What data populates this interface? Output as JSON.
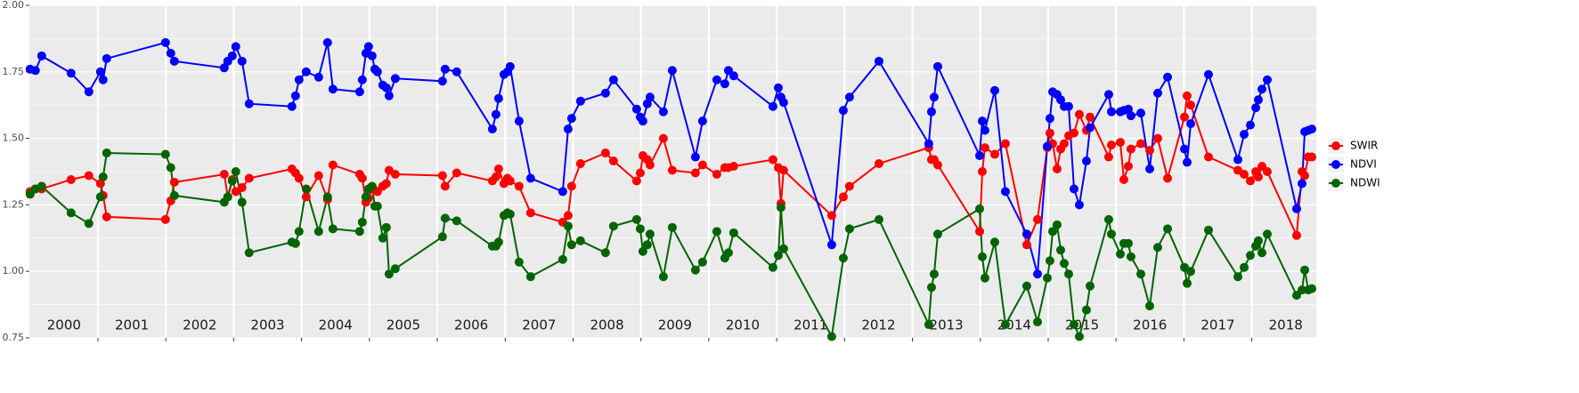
{
  "chart_data": {
    "type": "line",
    "x": [
      2000.0,
      2000.079,
      2000.171,
      2000.604,
      2000.866,
      2001.037,
      2001.076,
      2001.129,
      2001.995,
      2002.073,
      2002.126,
      2002.861,
      2002.913,
      2002.979,
      2003.031,
      2003.123,
      2003.228,
      2003.858,
      2003.911,
      2003.963,
      2004.068,
      2004.252,
      2004.383,
      2004.462,
      2004.856,
      2004.895,
      2004.948,
      2004.987,
      2005.039,
      2005.079,
      2005.118,
      2005.197,
      2005.249,
      2005.289,
      2005.381,
      2006.076,
      2006.115,
      2006.286,
      2006.811,
      2006.864,
      2006.903,
      2006.982,
      2007.034,
      2007.073,
      2007.205,
      2007.375,
      2007.848,
      2007.927,
      2007.979,
      2008.11,
      2008.478,
      2008.596,
      2008.937,
      2008.99,
      2009.029,
      2009.094,
      2009.134,
      2009.331,
      2009.462,
      2009.803,
      2009.908,
      2010.118,
      2010.236,
      2010.289,
      2010.367,
      2010.945,
      2011.024,
      2011.063,
      2011.102,
      2011.811,
      2011.982,
      2012.073,
      2012.507,
      2013.241,
      2013.281,
      2013.32,
      2013.373,
      2013.99,
      2014.029,
      2014.068,
      2014.213,
      2014.37,
      2014.685,
      2014.843,
      2014.987,
      2015.026,
      2015.066,
      2015.131,
      2015.184,
      2015.236,
      2015.302,
      2015.381,
      2015.459,
      2015.564,
      2015.617,
      2015.892,
      2015.932,
      2016.063,
      2016.115,
      2016.181,
      2016.22,
      2016.365,
      2016.496,
      2016.614,
      2016.759,
      2017.008,
      2017.047,
      2017.1,
      2017.362,
      2017.795,
      2017.887,
      2017.979,
      2018.058,
      2018.097,
      2018.15,
      2018.228,
      2018.661,
      2018.74,
      2018.78,
      2018.832,
      2018.885
    ],
    "series": [
      {
        "name": "SWIR",
        "color": "#ff0000",
        "values": [
          1.3,
          1.31,
          1.31,
          1.345,
          1.36,
          1.33,
          1.285,
          1.205,
          1.195,
          1.265,
          1.335,
          1.365,
          1.28,
          1.345,
          1.3,
          1.315,
          1.35,
          1.385,
          1.37,
          1.35,
          1.28,
          1.36,
          1.27,
          1.4,
          1.365,
          1.35,
          1.26,
          1.275,
          1.31,
          1.305,
          1.3,
          1.32,
          1.33,
          1.38,
          1.365,
          1.36,
          1.32,
          1.37,
          1.34,
          1.355,
          1.385,
          1.33,
          1.35,
          1.34,
          1.32,
          1.22,
          1.185,
          1.21,
          1.32,
          1.405,
          1.445,
          1.415,
          1.34,
          1.37,
          1.435,
          1.42,
          1.4,
          1.5,
          1.38,
          1.37,
          1.4,
          1.365,
          1.39,
          1.39,
          1.395,
          1.42,
          1.39,
          1.255,
          1.38,
          1.21,
          1.28,
          1.32,
          1.405,
          1.465,
          1.42,
          1.42,
          1.4,
          1.15,
          1.375,
          1.465,
          1.44,
          1.48,
          1.1,
          1.195,
          1.465,
          1.52,
          1.48,
          1.385,
          1.46,
          1.48,
          1.51,
          1.52,
          1.59,
          1.53,
          1.58,
          1.43,
          1.475,
          1.485,
          1.345,
          1.395,
          1.46,
          1.48,
          1.455,
          1.5,
          1.35,
          1.58,
          1.66,
          1.625,
          1.43,
          1.38,
          1.365,
          1.34,
          1.375,
          1.355,
          1.395,
          1.375,
          1.135,
          1.375,
          1.36,
          1.43,
          1.43
        ]
      },
      {
        "name": "NDVI",
        "color": "#0000ff",
        "values": [
          1.76,
          1.755,
          1.81,
          1.745,
          1.675,
          1.75,
          1.72,
          1.8,
          1.86,
          1.82,
          1.79,
          1.765,
          1.79,
          1.81,
          1.845,
          1.79,
          1.63,
          1.62,
          1.66,
          1.72,
          1.75,
          1.73,
          1.86,
          1.685,
          1.675,
          1.72,
          1.82,
          1.845,
          1.81,
          1.76,
          1.75,
          1.7,
          1.69,
          1.66,
          1.725,
          1.715,
          1.76,
          1.75,
          1.535,
          1.59,
          1.65,
          1.74,
          1.75,
          1.77,
          1.565,
          1.35,
          1.3,
          1.535,
          1.575,
          1.64,
          1.67,
          1.72,
          1.61,
          1.58,
          1.565,
          1.63,
          1.655,
          1.6,
          1.755,
          1.43,
          1.565,
          1.72,
          1.705,
          1.755,
          1.735,
          1.62,
          1.69,
          1.655,
          1.635,
          1.1,
          1.605,
          1.655,
          1.79,
          1.48,
          1.6,
          1.655,
          1.77,
          1.435,
          1.565,
          1.53,
          1.68,
          1.3,
          1.14,
          0.99,
          1.47,
          1.575,
          1.675,
          1.665,
          1.645,
          1.62,
          1.62,
          1.31,
          1.25,
          1.415,
          1.54,
          1.665,
          1.6,
          1.6,
          1.605,
          1.61,
          1.585,
          1.595,
          1.385,
          1.67,
          1.73,
          1.46,
          1.41,
          1.555,
          1.74,
          1.42,
          1.515,
          1.55,
          1.615,
          1.645,
          1.685,
          1.72,
          1.235,
          1.33,
          1.525,
          1.53,
          1.535
        ]
      },
      {
        "name": "NDWI",
        "color": "#006400",
        "values": [
          1.29,
          1.31,
          1.32,
          1.22,
          1.18,
          1.28,
          1.355,
          1.445,
          1.44,
          1.39,
          1.285,
          1.26,
          1.28,
          1.34,
          1.375,
          1.26,
          1.07,
          1.11,
          1.105,
          1.15,
          1.31,
          1.15,
          1.28,
          1.16,
          1.15,
          1.185,
          1.28,
          1.31,
          1.32,
          1.245,
          1.245,
          1.125,
          1.165,
          0.99,
          1.01,
          1.13,
          1.2,
          1.19,
          1.095,
          1.095,
          1.11,
          1.21,
          1.22,
          1.215,
          1.035,
          0.98,
          1.045,
          1.17,
          1.1,
          1.115,
          1.07,
          1.17,
          1.195,
          1.16,
          1.075,
          1.1,
          1.14,
          0.98,
          1.165,
          1.005,
          1.035,
          1.15,
          1.05,
          1.07,
          1.145,
          1.015,
          1.06,
          1.24,
          1.085,
          0.755,
          1.05,
          1.16,
          1.195,
          0.8,
          0.94,
          0.99,
          1.14,
          1.235,
          1.055,
          0.975,
          1.11,
          0.8,
          0.945,
          0.81,
          0.975,
          1.04,
          1.15,
          1.175,
          1.08,
          1.03,
          0.99,
          0.8,
          0.755,
          0.855,
          0.945,
          1.195,
          1.14,
          1.065,
          1.105,
          1.105,
          1.055,
          0.99,
          0.87,
          1.09,
          1.16,
          1.015,
          0.955,
          1.0,
          1.155,
          0.98,
          1.015,
          1.06,
          1.095,
          1.115,
          1.07,
          1.14,
          0.91,
          0.93,
          1.005,
          0.93,
          0.935
        ]
      }
    ],
    "xlim": [
      1999.99,
      2018.95
    ],
    "xticks": [
      2001,
      2002,
      2003,
      2004,
      2005,
      2006,
      2007,
      2008,
      2009,
      2010,
      2011,
      2012,
      2013,
      2014,
      2015,
      2016,
      2017,
      2018
    ],
    "ylim": [
      0.75,
      2.0
    ],
    "yticks": [
      {
        "value": 0.75,
        "label": "0.75"
      },
      {
        "value": 1,
        "label": "1.00"
      },
      {
        "value": 1.25,
        "label": "1.25"
      },
      {
        "value": 1.5,
        "label": "1.50"
      },
      {
        "value": 1.75,
        "label": "1.75"
      },
      {
        "value": 2,
        "label": "2.00"
      }
    ],
    "year_labels": [
      {
        "x": 2000.5,
        "label": "2000"
      },
      {
        "x": 2001.5,
        "label": "2001"
      },
      {
        "x": 2002.5,
        "label": "2002"
      },
      {
        "x": 2003.5,
        "label": "2003"
      },
      {
        "x": 2004.5,
        "label": "2004"
      },
      {
        "x": 2005.5,
        "label": "2005"
      },
      {
        "x": 2006.5,
        "label": "2006"
      },
      {
        "x": 2007.5,
        "label": "2007"
      },
      {
        "x": 2008.5,
        "label": "2008"
      },
      {
        "x": 2009.5,
        "label": "2009"
      },
      {
        "x": 2010.5,
        "label": "2010"
      },
      {
        "x": 2011.5,
        "label": "2011"
      },
      {
        "x": 2012.5,
        "label": "2012"
      },
      {
        "x": 2013.5,
        "label": "2013"
      },
      {
        "x": 2014.5,
        "label": "2014"
      },
      {
        "x": 2015.5,
        "label": "2015"
      },
      {
        "x": 2016.5,
        "label": "2016"
      },
      {
        "x": 2017.5,
        "label": "2017"
      },
      {
        "x": 2018.5,
        "label": "2018"
      }
    ],
    "grid": true,
    "legend": "right"
  }
}
